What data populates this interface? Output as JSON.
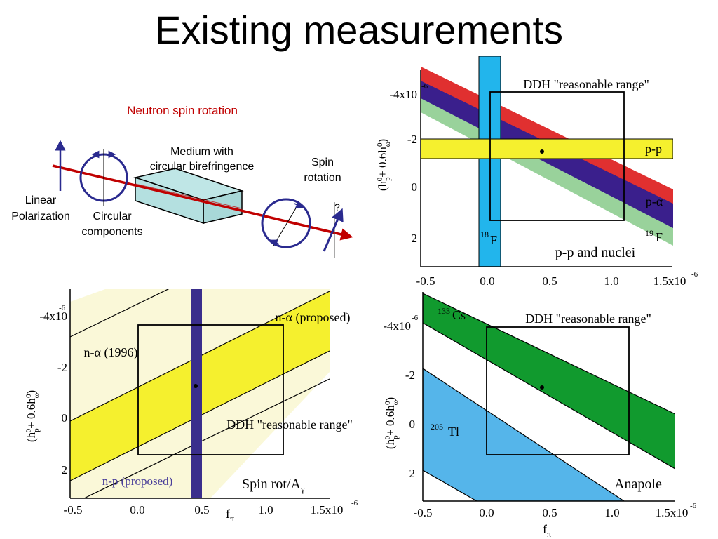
{
  "title": "Existing measurements",
  "colors": {
    "red": "#e03030",
    "purple": "#3a1f8c",
    "green_light": "#99d29b",
    "yellow": "#f5f02e",
    "cyan": "#22b5ec",
    "cream": "#faf8d8",
    "navy": "#2a2a8f",
    "green_dark": "#119a2e",
    "blue_light": "#55b5ea",
    "arrow_red": "#c00000",
    "dark_red_text": "#c00000"
  },
  "diagram": {
    "heading": "Neutron spin rotation",
    "medium_label_1": "Medium with",
    "medium_label_2": "circular birefringence",
    "spin_label_1": "Spin",
    "spin_label_2": "rotation",
    "linear_1": "Linear",
    "linear_2": "Polarization",
    "circular_1": "Circular",
    "circular_2": "components",
    "question": "?"
  },
  "axes": {
    "x_ticks": [
      "-0.5",
      "0.0",
      "0.5",
      "1.0",
      "1.5x10"
    ],
    "x_exp": "-6",
    "y_ticks": [
      "-4x10",
      "-2",
      "0",
      "2"
    ],
    "y_exp": "-6",
    "y_label_open": "(h",
    "y_label_sub_p": "p",
    "y_label_sup_0": "0",
    "y_label_mid": "+ 0.6h",
    "y_label_sub_w": "ω",
    "y_label_close": ")",
    "x_label_main": "f",
    "x_label_sub": "π"
  },
  "plot_tr": {
    "box_label": "DDH \"reasonable range\"",
    "pp": "p-p",
    "palpha": "p-α",
    "f19_sup": "19",
    "f19": "F",
    "f18_sup": "18",
    "f18": "F",
    "caption": "p-p and nuclei"
  },
  "plot_bl": {
    "na_proposed": "n-α (proposed)",
    "na_1996": "n-α (1996)",
    "box_label": "DDH \"reasonable range\"",
    "np_proposed": "n-p (proposed)",
    "caption_main": "Spin rot/A",
    "caption_sub": "γ"
  },
  "plot_br": {
    "cs_sup": "133",
    "cs": "Cs",
    "box_label": "DDH \"reasonable range\"",
    "tl_sup": "205",
    "tl": "Tl",
    "caption": "Anapole"
  }
}
